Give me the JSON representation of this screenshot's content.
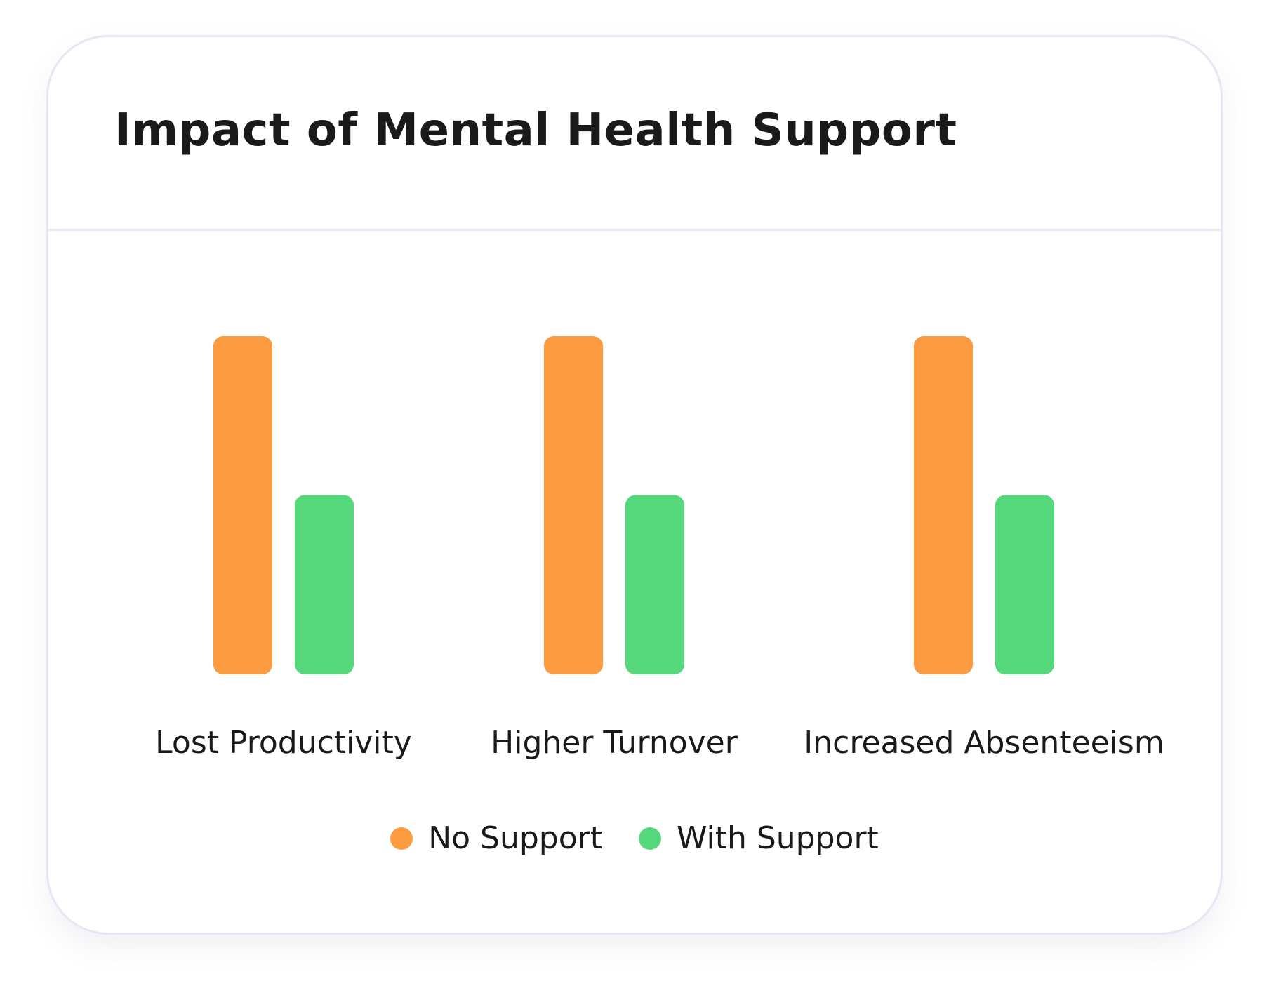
{
  "chart_data": {
    "type": "bar",
    "title": "Impact of Mental Health Support",
    "categories": [
      "Lost Productivity",
      "Higher Turnover",
      "Increased Absenteeism"
    ],
    "series": [
      {
        "name": "No Support",
        "color": "#fb9a3e",
        "values": [
          100,
          100,
          100
        ]
      },
      {
        "name": "With Support",
        "color": "#55d87b",
        "values": [
          53,
          53,
          53
        ]
      }
    ],
    "ylim": [
      0,
      100
    ],
    "grid": false,
    "legend_position": "bottom-center"
  }
}
